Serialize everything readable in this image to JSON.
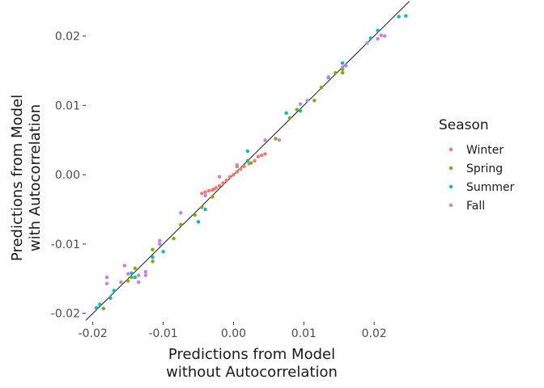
{
  "chart_data": {
    "type": "scatter",
    "xlabel": [
      "Predictions from Model",
      "without Autocorrelation"
    ],
    "ylabel": [
      "Predictions from Model",
      "with Autocorrelation"
    ],
    "xlim": [
      -0.021,
      0.0255
    ],
    "ylim": [
      -0.0212,
      0.0252
    ],
    "x_ticks": [
      -0.02,
      -0.01,
      0.0,
      0.01,
      0.02
    ],
    "x_tick_labels": [
      "-0.02",
      "-0.01",
      "0.00",
      "0.01",
      "0.02"
    ],
    "y_ticks": [
      -0.02,
      -0.01,
      0.0,
      0.01,
      0.02
    ],
    "y_tick_labels": [
      "-0.02",
      "-0.01",
      "0.00",
      "0.01",
      "0.02"
    ],
    "grid": false,
    "reference_line": {
      "type": "identity",
      "color": "#000000",
      "x_range": [
        -0.021,
        0.025
      ]
    },
    "legend": {
      "title": "Season",
      "position": "right"
    },
    "series": [
      {
        "name": "Winter",
        "color": "#F8766D",
        "points": [
          [
            -0.0045,
            -0.0027
          ],
          [
            -0.004,
            -0.0025
          ],
          [
            -0.0035,
            -0.0023
          ],
          [
            -0.003,
            -0.0022
          ],
          [
            -0.0028,
            -0.0021
          ],
          [
            -0.0025,
            -0.0019
          ],
          [
            -0.002,
            -0.0016
          ],
          [
            -0.0015,
            -0.0012
          ],
          [
            -0.001,
            -0.0008
          ],
          [
            -0.0005,
            -0.0003
          ],
          [
            0.0,
            0.0
          ],
          [
            0.0005,
            0.0004
          ],
          [
            0.001,
            0.0008
          ],
          [
            0.0015,
            0.0012
          ],
          [
            0.0022,
            0.0016
          ],
          [
            0.003,
            0.002
          ],
          [
            0.0035,
            0.0026
          ],
          [
            0.004,
            0.0028
          ],
          [
            0.0045,
            0.003
          ]
        ]
      },
      {
        "name": "Spring",
        "color": "#7CAE00",
        "points": [
          [
            -0.0185,
            -0.0193
          ],
          [
            -0.015,
            -0.0153
          ],
          [
            -0.0145,
            -0.0148
          ],
          [
            -0.014,
            -0.0135
          ],
          [
            -0.0115,
            -0.0125
          ],
          [
            -0.0115,
            -0.0108
          ],
          [
            -0.0085,
            -0.0092
          ],
          [
            -0.0075,
            -0.0072
          ],
          [
            -0.0055,
            -0.0058
          ],
          [
            -0.0045,
            -0.0047
          ],
          [
            -0.003,
            -0.0032
          ],
          [
            0.0005,
            0.0012
          ],
          [
            0.0025,
            0.0017
          ],
          [
            0.006,
            0.0052
          ],
          [
            0.008,
            0.0082
          ],
          [
            0.009,
            0.0094
          ],
          [
            0.0115,
            0.0107
          ],
          [
            0.0125,
            0.0126
          ],
          [
            0.0145,
            0.0147
          ],
          [
            0.0155,
            0.0147
          ],
          [
            0.0155,
            0.0152
          ]
        ]
      },
      {
        "name": "Summer",
        "color": "#00BFC4",
        "points": [
          [
            -0.0195,
            -0.0192
          ],
          [
            -0.019,
            -0.0187
          ],
          [
            -0.0175,
            -0.0178
          ],
          [
            -0.017,
            -0.0167
          ],
          [
            -0.0145,
            -0.0142
          ],
          [
            -0.014,
            -0.0148
          ],
          [
            -0.0115,
            -0.0119
          ],
          [
            -0.01,
            -0.0111
          ],
          [
            -0.005,
            -0.0068
          ],
          [
            -0.004,
            -0.005
          ],
          [
            0.002,
            0.002
          ],
          [
            0.002,
            0.0034
          ],
          [
            0.0075,
            0.0089
          ],
          [
            0.0095,
            0.0092
          ],
          [
            0.0135,
            0.014
          ],
          [
            0.0155,
            0.0161
          ],
          [
            0.0195,
            0.0197
          ],
          [
            0.0205,
            0.0208
          ],
          [
            0.0235,
            0.0228
          ],
          [
            0.0245,
            0.0229
          ]
        ]
      },
      {
        "name": "Fall",
        "color": "#C77CFF",
        "points": [
          [
            -0.018,
            -0.0148
          ],
          [
            -0.018,
            -0.0157
          ],
          [
            -0.016,
            -0.0155
          ],
          [
            -0.0155,
            -0.0131
          ],
          [
            -0.015,
            -0.0143
          ],
          [
            -0.0135,
            -0.0155
          ],
          [
            -0.0135,
            -0.0145
          ],
          [
            -0.0125,
            -0.014
          ],
          [
            -0.0125,
            -0.0145
          ],
          [
            -0.0105,
            -0.0095
          ],
          [
            -0.0105,
            -0.01
          ],
          [
            -0.0075,
            -0.0055
          ],
          [
            -0.004,
            -0.003
          ],
          [
            -0.002,
            -0.0003
          ],
          [
            0.0065,
            0.005
          ],
          [
            0.0005,
            0.0014
          ],
          [
            0.0045,
            0.005
          ],
          [
            0.0095,
            0.0102
          ],
          [
            0.0105,
            0.0107
          ],
          [
            0.0135,
            0.0141
          ],
          [
            0.0155,
            0.0155
          ],
          [
            0.016,
            0.0157
          ],
          [
            0.019,
            0.019
          ],
          [
            0.0215,
            0.02
          ],
          [
            0.021,
            0.0201
          ],
          [
            0.0205,
            0.0196
          ]
        ]
      }
    ]
  }
}
